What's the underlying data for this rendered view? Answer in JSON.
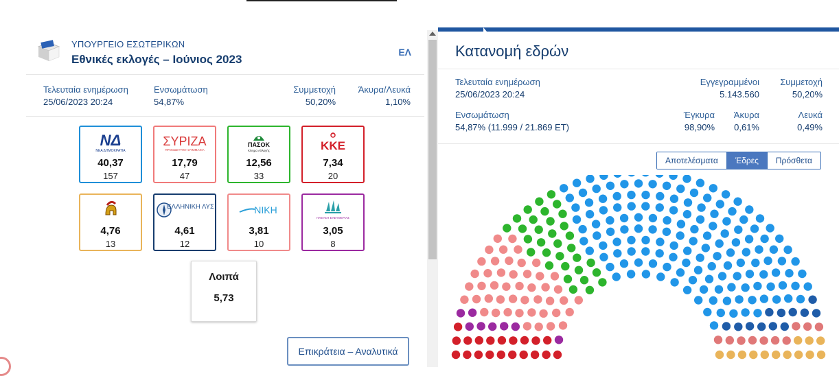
{
  "header": {
    "ministry": "ΥΠΟΥΡΓΕΙΟ ΕΣΩΤΕΡΙΚΩΝ",
    "election": "Εθνικές εκλογές – Ιούνιος 2023",
    "lang": "ΕΛ"
  },
  "left_stats": {
    "update_label": "Τελευταία ενημέρωση",
    "update_value": "25/06/2023 20:24",
    "integration_label": "Ενσωμάτωση",
    "integration_value": "54,87%",
    "turnout_label": "Συμμετοχή",
    "turnout_value": "50,20%",
    "invalid_label": "Άκυρα/Λευκά",
    "invalid_value": "1,10%"
  },
  "parties": [
    {
      "pct": "40,37",
      "seats": "157",
      "color": "#1f8fd8",
      "logo": "ΝΔ",
      "sub": "ΝΕΑ ΔΗΜΟΚΡΑΤΙΑ"
    },
    {
      "pct": "17,79",
      "seats": "47",
      "color": "#f07a7a",
      "logo": "ΣΥΡΙΖΑ",
      "sub": "ΠΡΟΟΔΕΥΤΙΚΗ ΣΥΜΜΑΧΙΑ"
    },
    {
      "pct": "12,56",
      "seats": "33",
      "color": "#2db52d",
      "logo": "ΠΑΣΟΚ",
      "sub": "Κίνημα Αλλαγής"
    },
    {
      "pct": "7,34",
      "seats": "20",
      "color": "#d3202a",
      "logo": "ΚΚΕ",
      "sub": ""
    },
    {
      "pct": "4,76",
      "seats": "13",
      "color": "#e9b45a",
      "logo": "",
      "sub": ""
    },
    {
      "pct": "4,61",
      "seats": "12",
      "color": "#163d6e",
      "logo": "ΕΛΛΗΝΙΚΗ ΛΥΣΗ",
      "sub": ""
    },
    {
      "pct": "3,81",
      "seats": "10",
      "color": "#f08a8a",
      "logo": "ΝΙΚΗ",
      "sub": ""
    },
    {
      "pct": "3,05",
      "seats": "8",
      "color": "#9b2aa0",
      "logo": "",
      "sub": "ΠΛΕΥΣΗ ΕΛΕΥΘΕΡΙΑΣ"
    }
  ],
  "others": {
    "label": "Λοιπά",
    "value": "5,73"
  },
  "detail_button": "Επικράτεια – Αναλυτικά",
  "right": {
    "title": "Κατανομή εδρών",
    "update_label": "Τελευταία ενημέρωση",
    "update_value": "25/06/2023 20:24",
    "registered_label": "Εγγεγραμμένοι",
    "registered_value": "5.143.560",
    "turnout_label": "Συμμετοχή",
    "turnout_value": "50,20%",
    "integration_label": "Ενσωμάτωση",
    "integration_value": "54,87% (11.999 / 21.869 ΕΤ)",
    "valid_label": "Έγκυρα",
    "valid_value": "98,90%",
    "invalid_label": "Άκυρα",
    "invalid_value": "0,61%",
    "blank_label": "Λευκά",
    "blank_value": "0,49%",
    "tabs": [
      "Αποτελέσματα",
      "Έδρες",
      "Πρόσθετα"
    ],
    "active_tab": 1
  },
  "chart_data": {
    "type": "parliament",
    "total_seats": 300,
    "rows": 10,
    "series": [
      {
        "seats": 20,
        "color": "#d3202a"
      },
      {
        "seats": 8,
        "color": "#9b2aa0"
      },
      {
        "seats": 47,
        "color": "#f08a8a"
      },
      {
        "seats": 33,
        "color": "#2db52d"
      },
      {
        "seats": 157,
        "color": "#2196e8"
      },
      {
        "seats": 12,
        "color": "#1f5ca8"
      },
      {
        "seats": 10,
        "color": "#e07878"
      },
      {
        "seats": 13,
        "color": "#e9b45a"
      }
    ]
  }
}
